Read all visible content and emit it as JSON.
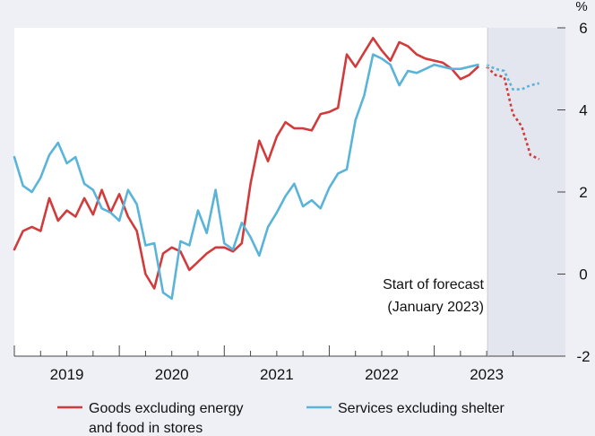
{
  "chart_data": {
    "type": "line",
    "ylabel": "%",
    "ylim": [
      -2,
      6
    ],
    "yticks": [
      "6",
      "4",
      "2",
      "0",
      "-2"
    ],
    "xlim": [
      2018.5,
      2023.75
    ],
    "xticks": [
      {
        "label": "2019",
        "x": 2019
      },
      {
        "label": "2020",
        "x": 2020
      },
      {
        "label": "2021",
        "x": 2021
      },
      {
        "label": "2022",
        "x": 2022
      },
      {
        "label": "2023",
        "x": 2023
      }
    ],
    "forecast_start": 2023.0,
    "annotation": [
      "Start of forecast",
      "(January 2023)"
    ],
    "background_color": "#eef0f5",
    "plot_color": "#ffffff",
    "forecast_shade_color": "#e4e6ef",
    "series": [
      {
        "name": "Goods excluding energy",
        "name_line2": "and food in stores",
        "color": "#d23b3b",
        "x": [
          2018.5,
          2018.583,
          2018.667,
          2018.75,
          2018.833,
          2018.917,
          2019.0,
          2019.083,
          2019.167,
          2019.25,
          2019.333,
          2019.417,
          2019.5,
          2019.583,
          2019.667,
          2019.75,
          2019.833,
          2019.917,
          2020.0,
          2020.083,
          2020.167,
          2020.25,
          2020.333,
          2020.417,
          2020.5,
          2020.583,
          2020.667,
          2020.75,
          2020.833,
          2020.917,
          2021.0,
          2021.083,
          2021.167,
          2021.25,
          2021.333,
          2021.417,
          2021.5,
          2021.583,
          2021.667,
          2021.75,
          2021.833,
          2021.917,
          2022.0,
          2022.083,
          2022.167,
          2022.25,
          2022.333,
          2022.417,
          2022.5,
          2022.583,
          2022.667,
          2022.75,
          2022.833,
          2022.917
        ],
        "values": [
          0.6,
          1.05,
          1.15,
          1.05,
          1.85,
          1.3,
          1.55,
          1.4,
          1.85,
          1.45,
          2.05,
          1.5,
          1.95,
          1.4,
          1.05,
          0.0,
          -0.35,
          0.5,
          0.65,
          0.55,
          0.1,
          0.3,
          0.5,
          0.65,
          0.65,
          0.55,
          0.75,
          2.2,
          3.25,
          2.75,
          3.35,
          3.7,
          3.55,
          3.55,
          3.5,
          3.9,
          3.95,
          4.05,
          5.35,
          5.05,
          5.4,
          5.75,
          5.45,
          5.2,
          5.65,
          5.55,
          5.35,
          5.25,
          5.2,
          5.15,
          5.0,
          4.75,
          4.85,
          5.05
        ],
        "forecast_x": [
          2023.0,
          2023.083,
          2023.167,
          2023.25,
          2023.333,
          2023.417,
          2023.5
        ],
        "forecast_values": [
          5.05,
          4.85,
          4.8,
          3.9,
          3.6,
          2.9,
          2.8
        ]
      },
      {
        "name": "Services excluding shelter",
        "color": "#5ab4d9",
        "x": [
          2018.5,
          2018.583,
          2018.667,
          2018.75,
          2018.833,
          2018.917,
          2019.0,
          2019.083,
          2019.167,
          2019.25,
          2019.333,
          2019.417,
          2019.5,
          2019.583,
          2019.667,
          2019.75,
          2019.833,
          2019.917,
          2020.0,
          2020.083,
          2020.167,
          2020.25,
          2020.333,
          2020.417,
          2020.5,
          2020.583,
          2020.667,
          2020.75,
          2020.833,
          2020.917,
          2021.0,
          2021.083,
          2021.167,
          2021.25,
          2021.333,
          2021.417,
          2021.5,
          2021.583,
          2021.667,
          2021.75,
          2021.833,
          2021.917,
          2022.0,
          2022.083,
          2022.167,
          2022.25,
          2022.333,
          2022.417,
          2022.5,
          2022.583,
          2022.667,
          2022.75,
          2022.833,
          2022.917
        ],
        "values": [
          2.85,
          2.15,
          2.0,
          2.35,
          2.9,
          3.2,
          2.7,
          2.85,
          2.2,
          2.05,
          1.6,
          1.5,
          1.3,
          2.05,
          1.7,
          0.7,
          0.75,
          -0.45,
          -0.6,
          0.8,
          0.7,
          1.55,
          1.0,
          2.05,
          0.75,
          0.6,
          1.25,
          0.9,
          0.45,
          1.15,
          1.5,
          1.9,
          2.2,
          1.65,
          1.8,
          1.6,
          2.1,
          2.45,
          2.55,
          3.75,
          4.35,
          5.35,
          5.25,
          5.1,
          4.6,
          4.95,
          4.9,
          5.0,
          5.1,
          5.05,
          5.0,
          5.0,
          5.05,
          5.1
        ],
        "forecast_x": [
          2023.0,
          2023.083,
          2023.167,
          2023.25,
          2023.333,
          2023.417,
          2023.5
        ],
        "forecast_values": [
          5.1,
          5.0,
          4.95,
          4.5,
          4.5,
          4.6,
          4.65
        ]
      }
    ]
  }
}
